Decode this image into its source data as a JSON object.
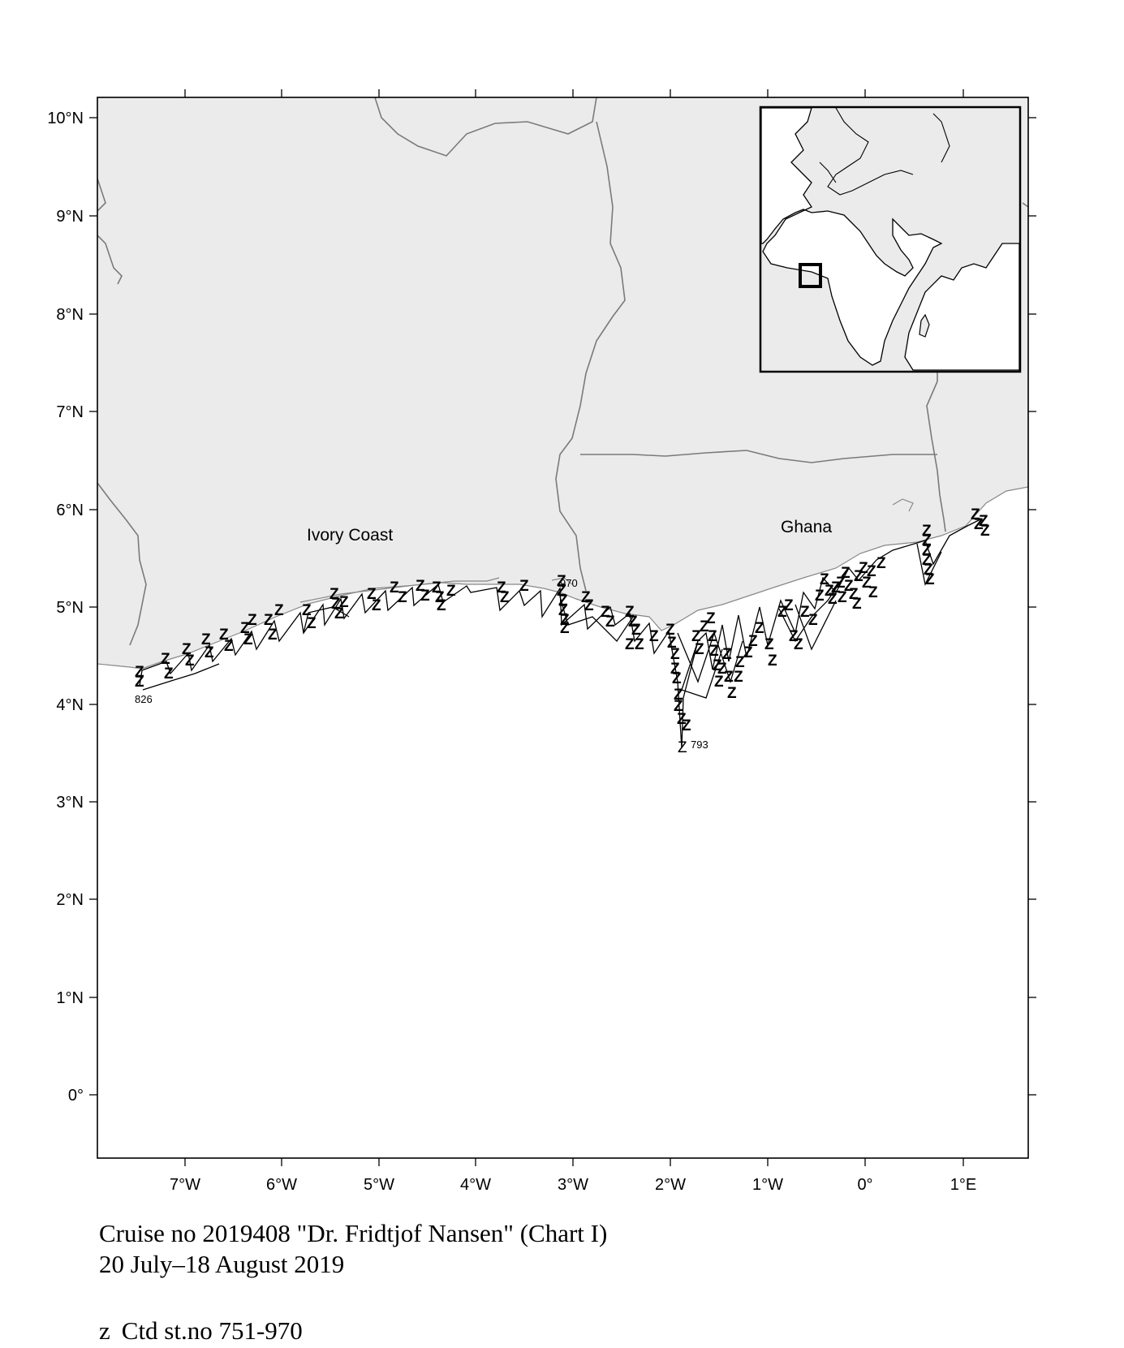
{
  "map": {
    "x_axis_labels": [
      "7°W",
      "6°W",
      "5°W",
      "4°W",
      "3°W",
      "2°W",
      "1°W",
      "0°",
      "1°E"
    ],
    "y_axis_labels": [
      "10°N",
      "9°N",
      "8°N",
      "7°N",
      "6°N",
      "5°N",
      "4°N",
      "3°N",
      "2°N",
      "1°N",
      "0°"
    ],
    "country_labels": {
      "west": "Ivory Coast",
      "east": "Ghana"
    },
    "station_labels": {
      "first": "826",
      "mid": "970",
      "south": "793"
    },
    "station_symbol": "Z",
    "colors": {
      "land": "#ebebeb",
      "border": "#7a7a7a",
      "coast": "#888888",
      "track": "#000000",
      "frame": "#000000",
      "sea": "#ffffff"
    }
  },
  "caption": {
    "line1": "Cruise no 2019408  \"Dr. Fridtjof Nansen\" (Chart I)",
    "line2": "20 July–18 August 2019",
    "legend_symbol": "z",
    "legend_text": "Ctd st.no 751-970"
  }
}
